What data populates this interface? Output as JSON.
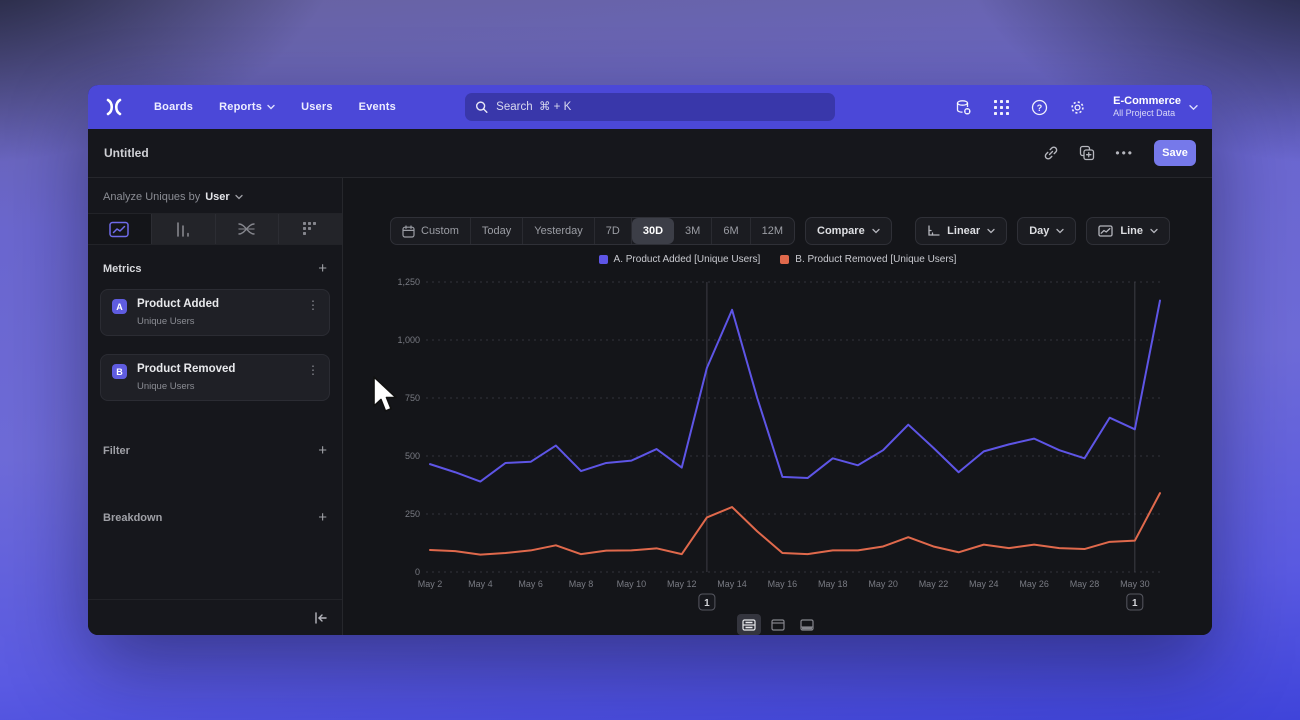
{
  "nav": {
    "items": [
      "Boards",
      "Reports",
      "Users",
      "Events"
    ],
    "search_placeholder": "Search  ⌘ + K",
    "project_name": "E-Commerce",
    "project_subtitle": "All Project Data"
  },
  "header": {
    "title": "Untitled",
    "save_label": "Save",
    "more_label": "•••"
  },
  "sidebar": {
    "analyze_label": "Analyze Uniques by",
    "analyze_value": "User",
    "metrics_label": "Metrics",
    "metrics": [
      {
        "badge": "A",
        "name": "Product Added",
        "subtitle": "Unique Users",
        "menu": "⋮"
      },
      {
        "badge": "B",
        "name": "Product Removed",
        "subtitle": "Unique Users",
        "menu": "⋮"
      }
    ],
    "filter_label": "Filter",
    "breakdown_label": "Breakdown",
    "add_symbol": "+"
  },
  "controls": {
    "ranges": [
      "Custom",
      "Today",
      "Yesterday",
      "7D",
      "30D",
      "3M",
      "6M",
      "12M"
    ],
    "selected_range": "30D",
    "compare_label": "Compare",
    "scale_label": "Linear",
    "interval_label": "Day",
    "chart_type_label": "Line"
  },
  "icons": {
    "logo": "mixpanel-x",
    "search": "magnifier",
    "nav_right": [
      "database-gear",
      "apps-grid",
      "help-circle",
      "settings-gear"
    ],
    "header_right": [
      "link",
      "duplicate",
      "ellipsis"
    ],
    "sidebar_tabs": [
      "insights-line-chart",
      "funnel-bars",
      "flows",
      "retention-grid"
    ],
    "collapse": "collapse-left-arrow",
    "calendar": "calendar",
    "layout_toggles": [
      "chart-and-table",
      "chart-only",
      "table-only"
    ]
  },
  "chart_data": {
    "type": "line",
    "x": [
      "May 2",
      "May 3",
      "May 4",
      "May 5",
      "May 6",
      "May 7",
      "May 8",
      "May 9",
      "May 10",
      "May 11",
      "May 12",
      "May 13",
      "May 14",
      "May 15",
      "May 16",
      "May 17",
      "May 18",
      "May 19",
      "May 20",
      "May 21",
      "May 22",
      "May 23",
      "May 24",
      "May 25",
      "May 26",
      "May 27",
      "May 28",
      "May 29",
      "May 30",
      "May 31"
    ],
    "xtick_every": 2,
    "series": [
      {
        "name": "A. Product Added [Unique Users]",
        "color": "#5e55e6",
        "values": [
          465,
          430,
          390,
          470,
          475,
          545,
          435,
          470,
          480,
          530,
          450,
          880,
          1130,
          750,
          410,
          405,
          490,
          460,
          525,
          635,
          535,
          430,
          520,
          550,
          575,
          525,
          490,
          665,
          615,
          1170
        ]
      },
      {
        "name": "B. Product Removed [Unique Users]",
        "color": "#e0694c",
        "values": [
          95,
          90,
          75,
          82,
          93,
          115,
          77,
          92,
          93,
          102,
          77,
          235,
          280,
          175,
          82,
          77,
          93,
          93,
          110,
          150,
          110,
          85,
          118,
          103,
          118,
          103,
          99,
          130,
          135,
          340
        ]
      }
    ],
    "ylim": [
      0,
      1250
    ],
    "yticks": [
      0,
      250,
      500,
      750,
      1000,
      1250
    ],
    "ytick_labels": [
      "0",
      "250",
      "500",
      "750",
      "1,000",
      "1,250"
    ],
    "grid": "horizontal-dotted",
    "legend_position": "top-center",
    "annotations": [
      {
        "index": 11,
        "x": "May 13",
        "label": "1"
      },
      {
        "index": 28,
        "x": "May 30",
        "label": "1"
      }
    ]
  }
}
